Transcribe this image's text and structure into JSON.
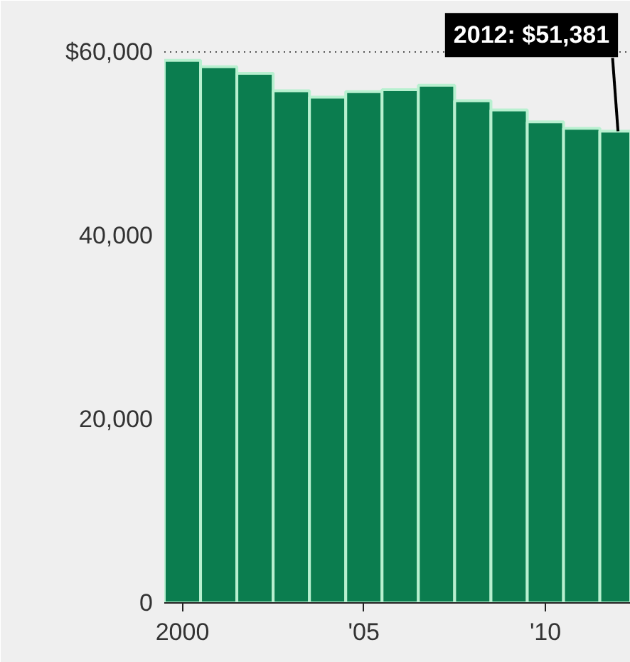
{
  "chart_data": {
    "type": "bar",
    "x": [
      2000,
      2001,
      2002,
      2003,
      2004,
      2005,
      2006,
      2007,
      2008,
      2009,
      2010,
      2011,
      2012
    ],
    "values": [
      59100,
      58400,
      57700,
      55800,
      55100,
      55700,
      55900,
      56400,
      54700,
      53700,
      52400,
      51700,
      51381
    ],
    "color": "#0b7d4f",
    "xlim": [
      1999.5,
      2012.35
    ],
    "xticks": [
      2000,
      {
        "value": 2005,
        "label": "'05"
      },
      {
        "value": 2010,
        "label": "'10"
      }
    ],
    "ylim": [
      0,
      65600
    ],
    "yticks": [
      0,
      {
        "value": 20000,
        "label": "20,000"
      },
      {
        "value": 40000,
        "label": "40,000"
      },
      {
        "value": 60000,
        "label": "$60,000"
      }
    ],
    "grid": "y",
    "annotations": [
      {
        "text": "2012: $51,381",
        "x": 2012,
        "y": 51381
      }
    ]
  }
}
